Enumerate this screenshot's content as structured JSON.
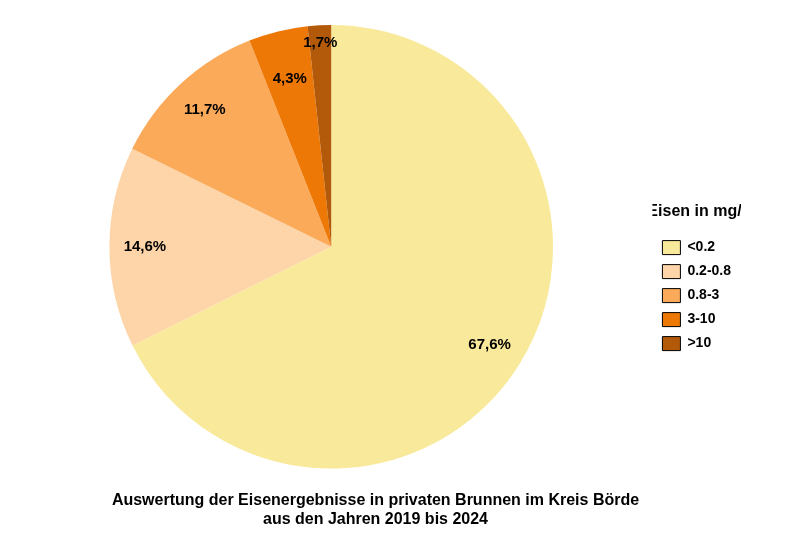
{
  "chart_data": {
    "type": "pie",
    "title": "Auswertung der Eisenergebnisse in privaten Brunnen im Kreis Börde\naus den Jahren 2019 bis 2024",
    "legend_title": "Eisen in mg/l",
    "categories": [
      "<0.2",
      "0.2-0.8",
      "0.8-3",
      "3-10",
      ">10"
    ],
    "values": [
      67.6,
      14.6,
      11.7,
      4.3,
      1.7
    ],
    "value_labels": [
      "67,6%",
      "14,6%",
      "11,7%",
      "4,3%",
      "1,7%"
    ],
    "colors": [
      "#f9e99a",
      "#fdd5a8",
      "#fbaa5a",
      "#ee7806",
      "#b35a0a"
    ],
    "legend": "right",
    "data_labels": true
  }
}
